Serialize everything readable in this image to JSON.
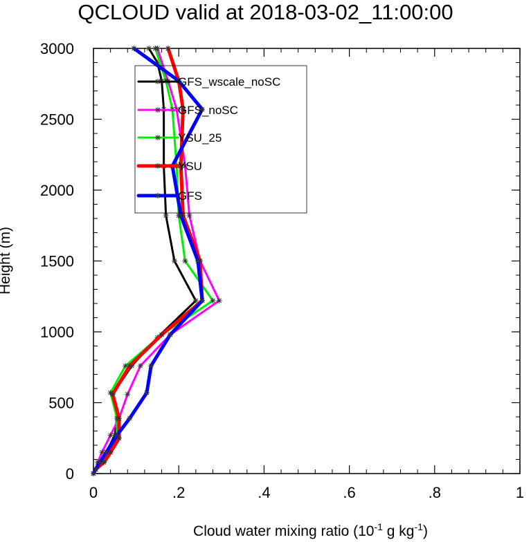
{
  "chart_data": {
    "type": "line",
    "title": "QCLOUD valid at 2018-03-02_11:00:00",
    "xlabel_main": "Cloud water mixing ratio (10",
    "xlabel_sup1": "-1",
    "xlabel_mid": " g kg",
    "xlabel_sup2": "-1",
    "xlabel_end": ")",
    "ylabel": "Height (m)",
    "xlim": [
      0,
      1
    ],
    "ylim": [
      0,
      3000
    ],
    "x_ticks": [
      0,
      0.2,
      0.4,
      0.6,
      0.8,
      1
    ],
    "x_tick_labels": [
      "0",
      ".2",
      ".4",
      ".6",
      ".8",
      "1"
    ],
    "y_ticks": [
      0,
      500,
      1000,
      1500,
      2000,
      2500,
      3000
    ],
    "y_tick_labels": [
      "0",
      "500",
      "1000",
      "1500",
      "2000",
      "2500",
      "3000"
    ],
    "legend_position": "upper-left",
    "series": [
      {
        "name": "GFS_wscale_noSC",
        "color": "#000000",
        "width": 3,
        "x": [
          0,
          0.005,
          0.015,
          0.03,
          0.05,
          0.055,
          0.045,
          0.09,
          0.15,
          0.24,
          0.19,
          0.17,
          0.165,
          0.165,
          0.16,
          0.15,
          0.13
        ],
        "y": [
          0,
          30,
          80,
          150,
          270,
          390,
          560,
          760,
          960,
          1220,
          1500,
          1820,
          2170,
          2570,
          2770,
          2900,
          3000
        ]
      },
      {
        "name": "GFS_noSC",
        "color": "#ff00ff",
        "width": 3,
        "x": [
          0,
          0.005,
          0.01,
          0.02,
          0.04,
          0.06,
          0.08,
          0.11,
          0.18,
          0.295,
          0.25,
          0.225,
          0.215,
          0.195,
          0.175,
          0.15
        ],
        "y": [
          0,
          30,
          80,
          150,
          270,
          390,
          560,
          760,
          980,
          1220,
          1500,
          1820,
          2170,
          2570,
          2770,
          3000
        ]
      },
      {
        "name": "YSU_25",
        "color": "#00ee00",
        "width": 3,
        "x": [
          0,
          0.005,
          0.02,
          0.035,
          0.055,
          0.055,
          0.04,
          0.075,
          0.16,
          0.28,
          0.215,
          0.2,
          0.195,
          0.185,
          0.17,
          0.145
        ],
        "y": [
          0,
          30,
          80,
          150,
          260,
          390,
          570,
          760,
          980,
          1220,
          1500,
          1820,
          2170,
          2570,
          2770,
          3000
        ]
      },
      {
        "name": "YSU",
        "color": "#ff0000",
        "width": 5,
        "x": [
          0,
          0.005,
          0.025,
          0.04,
          0.06,
          0.06,
          0.045,
          0.085,
          0.16,
          0.255,
          0.25,
          0.21,
          0.205,
          0.21,
          0.2,
          0.175
        ],
        "y": [
          0,
          30,
          80,
          150,
          250,
          390,
          560,
          760,
          980,
          1220,
          1500,
          1820,
          2170,
          2570,
          2770,
          3000
        ]
      },
      {
        "name": "GFS",
        "color": "#0000ff",
        "width": 5,
        "x": [
          0,
          0.005,
          0.015,
          0.03,
          0.055,
          0.085,
          0.125,
          0.135,
          0.18,
          0.255,
          0.245,
          0.205,
          0.185,
          0.255,
          0.2,
          0.095
        ],
        "y": [
          0,
          30,
          80,
          150,
          270,
          390,
          570,
          760,
          980,
          1220,
          1500,
          1820,
          2170,
          2570,
          2770,
          3000
        ]
      }
    ]
  }
}
